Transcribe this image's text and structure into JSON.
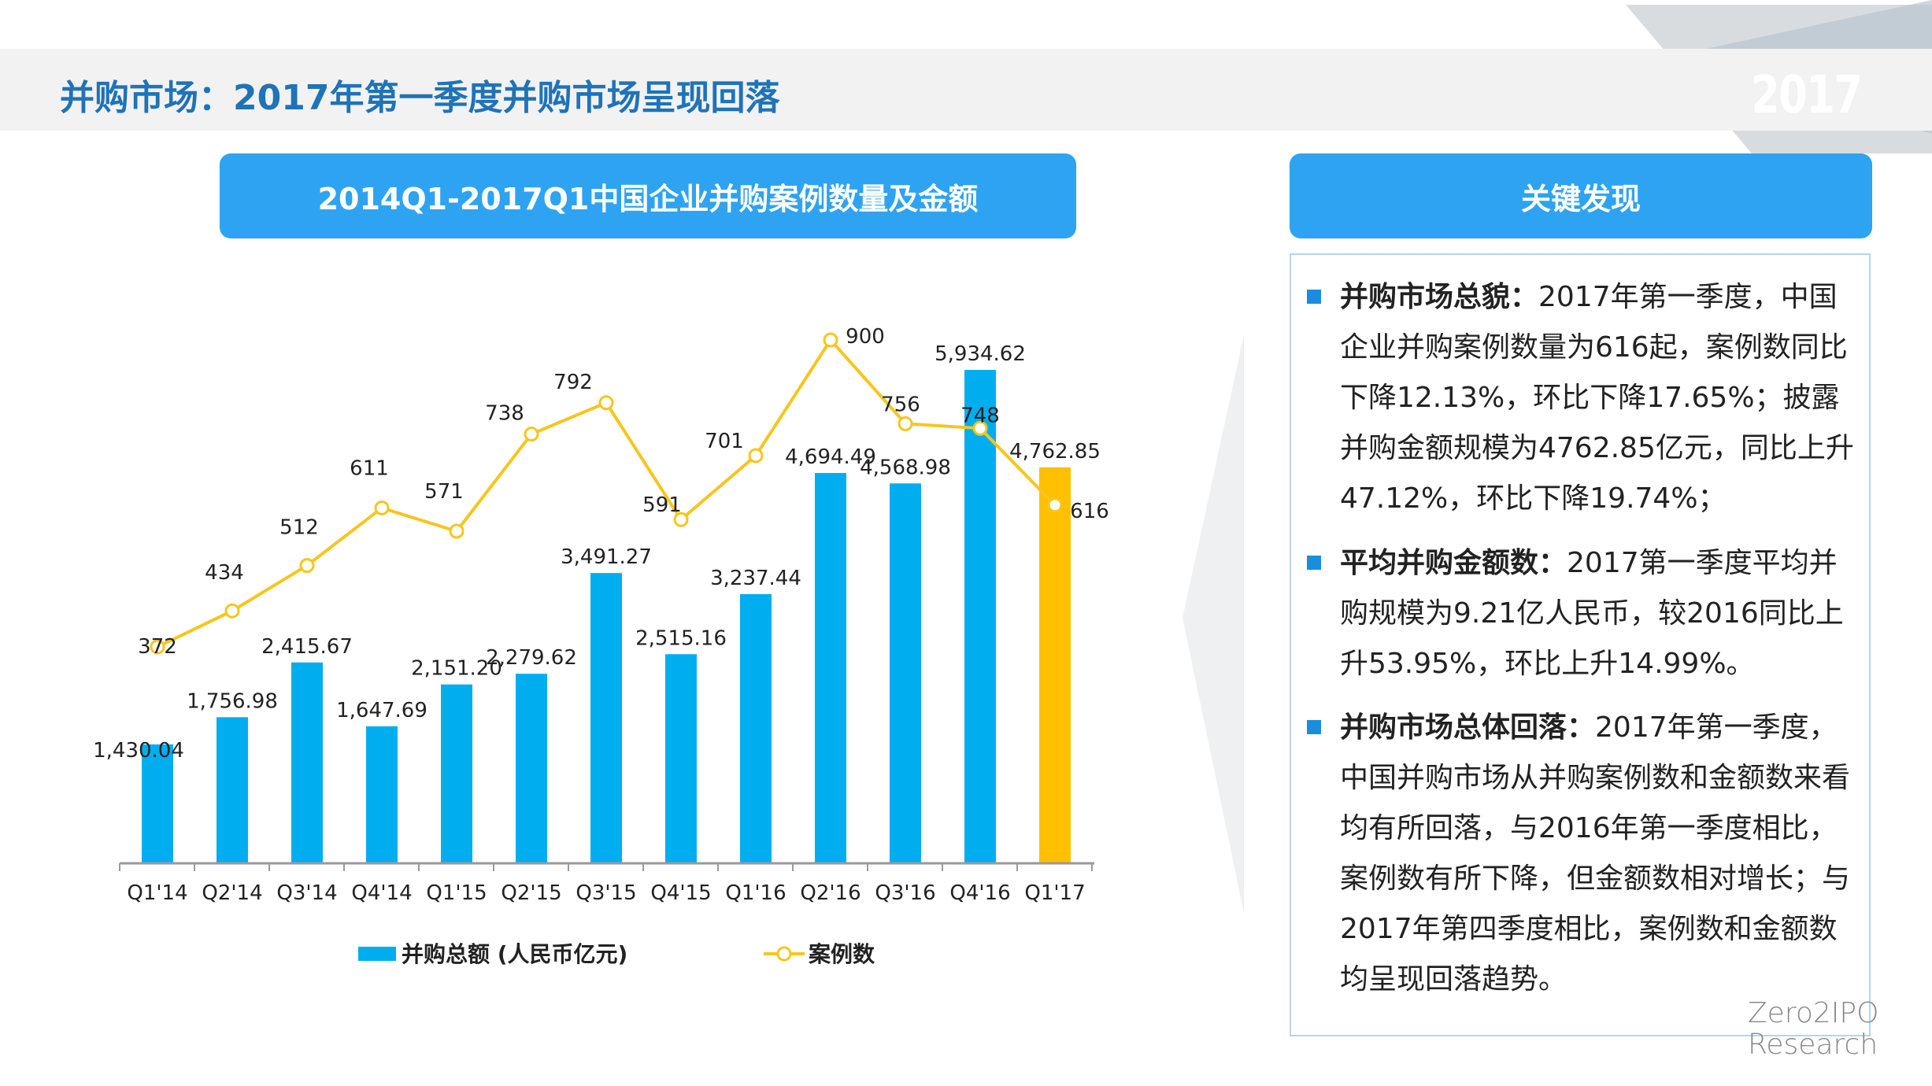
{
  "page": {
    "title": "并购市场：2017年第一季度并购市场呈现回落",
    "year_badge": "2017",
    "chart_header": "2014Q1-2017Q1中国企业并购案例数量及金额",
    "findings_header": "关键发现",
    "logo_line1": "Zero2IPO",
    "logo_line2": "Research"
  },
  "colors": {
    "bar": "#00aeef",
    "bar_highlight": "#ffc000",
    "line": "#f7c51e",
    "accent": "#2ea3f2",
    "title": "#1f73b7"
  },
  "findings": [
    {
      "heading": "并购市场总貌：",
      "body": "2017年第一季度，中国企业并购案例数量为616起，案例数同比下降12.13%，环比下降17.65%；披露并购金额规模为4762.85亿元，同比上升47.12%，环比下降19.74%；"
    },
    {
      "heading": "平均并购金额数：",
      "body": "2017第一季度平均并购规模为9.21亿人民币，较2016同比上升53.95%，环比上升14.99%。"
    },
    {
      "heading": "并购市场总体回落：",
      "body": "2017年第一季度，中国并购市场从并购案例数和金额数来看均有所回落，与2016年第一季度相比，案例数有所下降，但金额数相对增长；与2017年第四季度相比，案例数和金额数均呈现回落趋势。"
    }
  ],
  "chart_data": {
    "type": "bar",
    "title": "2014Q1-2017Q1中国企业并购案例数量及金额",
    "categories": [
      "Q1'14",
      "Q2'14",
      "Q3'14",
      "Q4'14",
      "Q1'15",
      "Q2'15",
      "Q3'15",
      "Q4'15",
      "Q1'16",
      "Q2'16",
      "Q3'16",
      "Q4'16",
      "Q1'17"
    ],
    "series": [
      {
        "name": "并购总额 (人民币亿元)",
        "type": "bar",
        "values": [
          1430.04,
          1756.98,
          2415.67,
          1647.69,
          2151.2,
          2279.62,
          3491.27,
          2515.16,
          3237.44,
          4694.49,
          4568.98,
          5934.62,
          4762.85
        ],
        "labels": [
          "1,430.04",
          "1,756.98",
          "2,415.67",
          "1,647.69",
          "2,151.20",
          "2,279.62",
          "3,491.27",
          "2,515.16",
          "3,237.44",
          "4,694.49",
          "4,568.98",
          "5,934.62",
          "4,762.85"
        ]
      },
      {
        "name": "案例数",
        "type": "line",
        "values": [
          372,
          434,
          512,
          611,
          571,
          738,
          792,
          591,
          701,
          900,
          756,
          748,
          616
        ],
        "labels": [
          "372",
          "434",
          "512",
          "611",
          "571",
          "738",
          "792",
          "591",
          "701",
          "900",
          "756",
          "748",
          "616"
        ]
      }
    ],
    "bar_ylim": [
      0,
      6300
    ],
    "line_ylim": [
      0,
      900
    ],
    "legend": "bottom",
    "grid": false
  }
}
